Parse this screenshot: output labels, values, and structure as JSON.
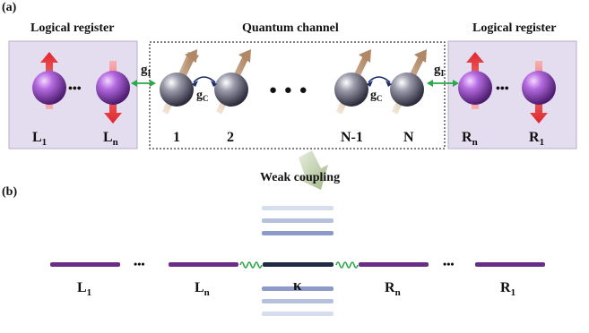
{
  "panel_a": {
    "label": "(a)",
    "left_register": {
      "title": "Logical register",
      "first": "L",
      "first_sub": "1",
      "last": "L",
      "last_sub": "n",
      "dots": "•••"
    },
    "channel": {
      "title": "Quantum channel",
      "site_1": "1",
      "site_2": "2",
      "site_n1": "N-1",
      "site_n": "N",
      "dots": "● ● ●"
    },
    "right_register": {
      "title": "Logical register",
      "first": "R",
      "first_sub": "n",
      "last": "R",
      "last_sub": "1",
      "dots": "•••"
    },
    "coupling_left": {
      "base": "g",
      "sub": "I"
    },
    "coupling_right": {
      "base": "g",
      "sub": "I"
    },
    "coupling_chain_left": {
      "base": "g",
      "sub": "C"
    },
    "coupling_chain_right": {
      "base": "g",
      "sub": "C"
    },
    "transition": "Weak coupling"
  },
  "panel_b": {
    "label": "(b)",
    "dots_left": "•••",
    "dots_right": "•••",
    "labels": {
      "l1": "L",
      "l1_sub": "1",
      "ln": "L",
      "ln_sub": "n",
      "kappa": "κ",
      "rn": "R",
      "rn_sub": "n",
      "r1": "R",
      "r1_sub": "1"
    }
  },
  "colors": {
    "register_bg": "#e4dcef",
    "register_qubit": "#9a4fc4",
    "channel_qubit": "#5b5b6e",
    "coupling_green": "#2aa84a",
    "level_purple": "#6a2d86",
    "level_center": "#1f2a44",
    "arrow_red": "#e8363a",
    "arrow_tan": "#c8a88a",
    "band_blue": "#8c9bc8"
  }
}
